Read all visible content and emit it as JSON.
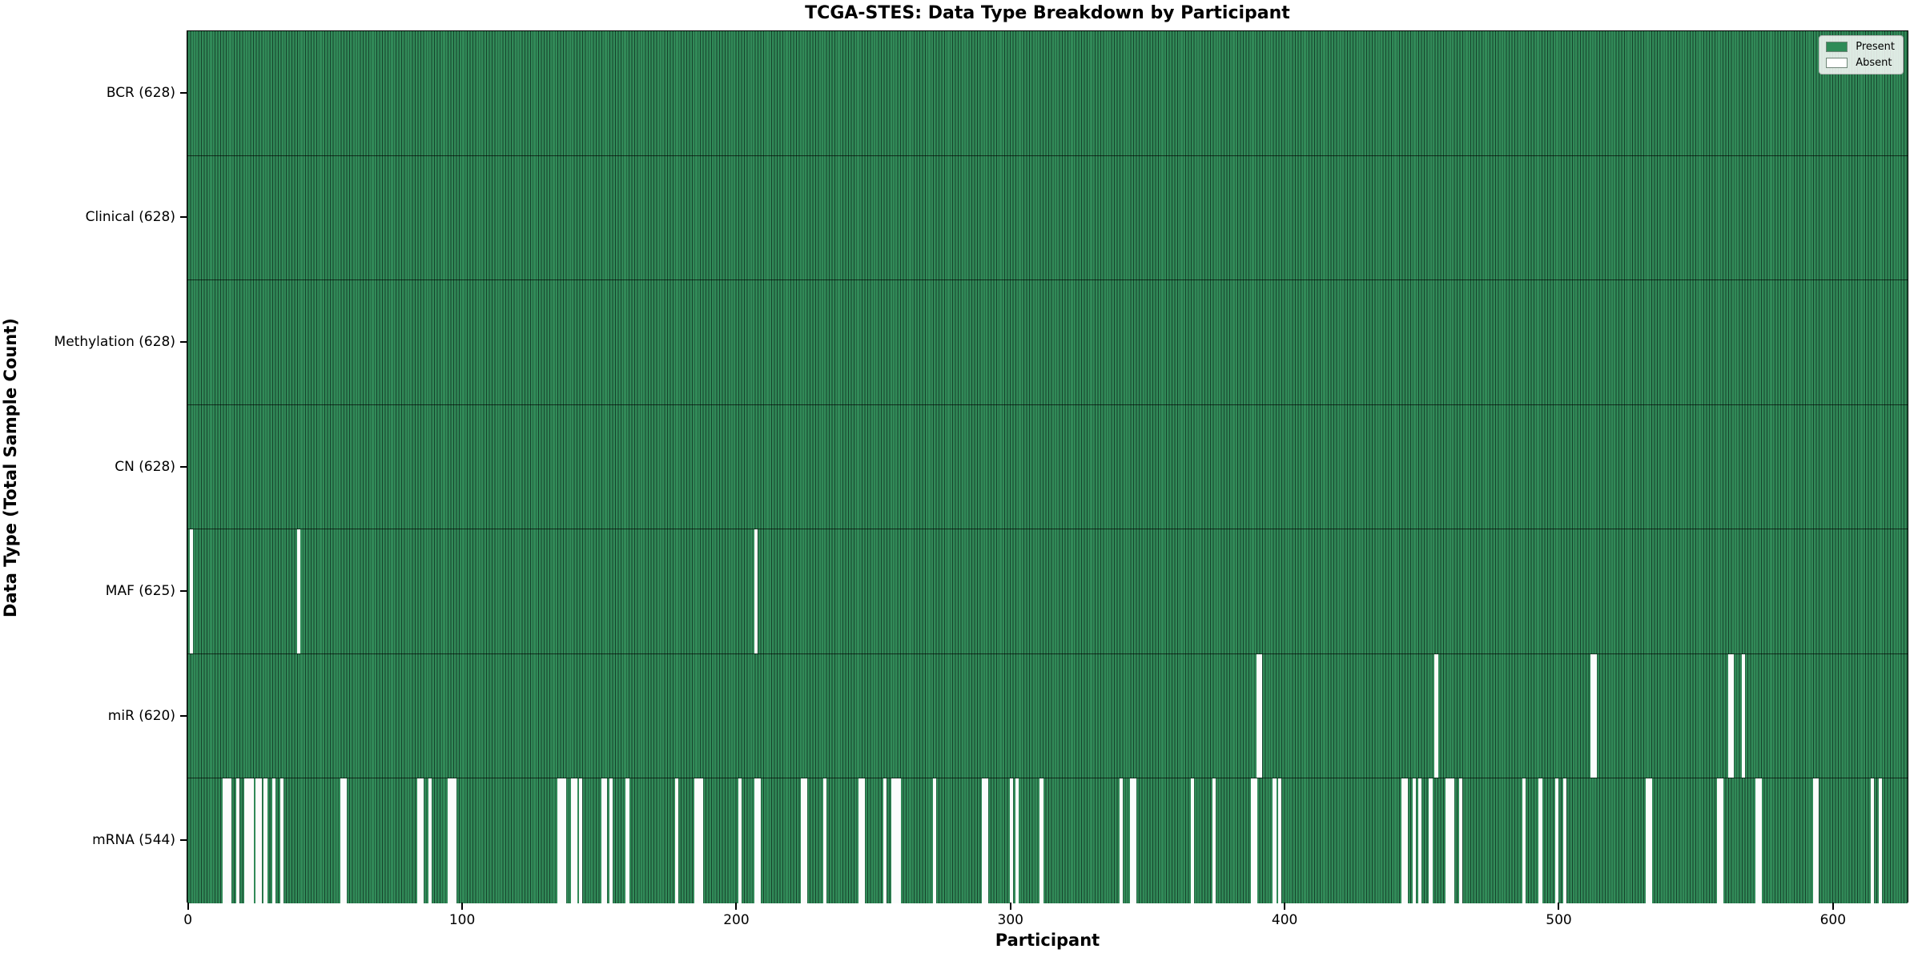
{
  "title": "TCGA-STES: Data Type Breakdown by Participant",
  "chart_data": {
    "type": "heatmap",
    "title": "TCGA-STES: Data Type Breakdown by Participant",
    "xlabel": "Participant",
    "ylabel": "Data Type (Total Sample Count)",
    "x_ticks": [
      0,
      100,
      200,
      300,
      400,
      500,
      600
    ],
    "x_range": [
      -0.5,
      627.5
    ],
    "n_participants": 628,
    "grid": false,
    "legend_position": "upper right",
    "legend": [
      {
        "id": "present",
        "label": "Present",
        "color": "#2e8b57"
      },
      {
        "id": "absent",
        "label": "Absent",
        "color": "#ffffff"
      }
    ],
    "colors": {
      "present_fill": "#318a58",
      "bar_edge": "#16432c",
      "absent_fill": "#fcfcfc",
      "spine": "#000000"
    },
    "rows": [
      {
        "id": "bcr",
        "name": "BCR",
        "label": "BCR (628)",
        "present_count": 628,
        "absent_count": 0,
        "absent_participants": []
      },
      {
        "id": "clinical",
        "name": "Clinical",
        "label": "Clinical (628)",
        "present_count": 628,
        "absent_count": 0,
        "absent_participants": []
      },
      {
        "id": "methylation",
        "name": "Methylation",
        "label": "Methylation (628)",
        "present_count": 628,
        "absent_count": 0,
        "absent_participants": []
      },
      {
        "id": "cn",
        "name": "CN",
        "label": "CN (628)",
        "present_count": 628,
        "absent_count": 0,
        "absent_participants": []
      },
      {
        "id": "maf",
        "name": "MAF",
        "label": "MAF (625)",
        "present_count": 625,
        "absent_count": 3,
        "absent_participants": [
          1,
          40,
          207
        ]
      },
      {
        "id": "mir",
        "name": "miR",
        "label": "miR (620)",
        "present_count": 620,
        "absent_count": 8,
        "absent_participants": [
          390,
          391,
          455,
          512,
          513,
          562,
          563,
          567
        ]
      },
      {
        "id": "mrna",
        "name": "mRNA",
        "label": "mRNA (544)",
        "present_count": 544,
        "absent_count": 84,
        "absent_participants": [
          13,
          14,
          15,
          18,
          21,
          22,
          23,
          25,
          26,
          28,
          31,
          34,
          56,
          57,
          84,
          85,
          88,
          95,
          96,
          97,
          135,
          136,
          137,
          140,
          141,
          143,
          151,
          152,
          154,
          160,
          178,
          185,
          186,
          187,
          201,
          207,
          208,
          224,
          225,
          232,
          245,
          246,
          254,
          257,
          258,
          259,
          272,
          290,
          291,
          300,
          302,
          311,
          340,
          344,
          345,
          366,
          374,
          388,
          389,
          396,
          398,
          443,
          444,
          447,
          449,
          453,
          459,
          460,
          461,
          464,
          487,
          493,
          499,
          502,
          532,
          533,
          558,
          559,
          572,
          573,
          593,
          594,
          614,
          617
        ]
      }
    ]
  }
}
